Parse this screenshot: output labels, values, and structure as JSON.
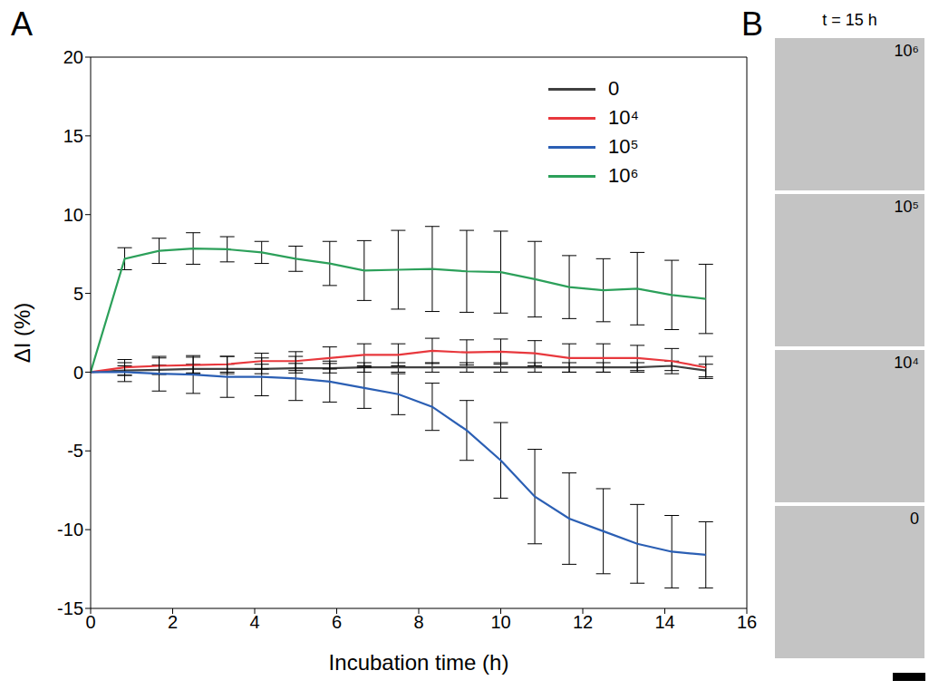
{
  "chart_data": {
    "type": "line",
    "x_label": "Incubation time (h)",
    "y_label": "ΔI (%)",
    "x": [
      0,
      0.83,
      1.67,
      2.5,
      3.33,
      4.17,
      5,
      5.83,
      6.67,
      7.5,
      8.33,
      9.17,
      10,
      10.83,
      11.67,
      12.5,
      13.33,
      14.17,
      15
    ],
    "series": [
      {
        "name": "0",
        "color": "#404040",
        "values": [
          0,
          0.1,
          0.15,
          0.2,
          0.2,
          0.2,
          0.25,
          0.25,
          0.3,
          0.3,
          0.3,
          0.3,
          0.3,
          0.3,
          0.3,
          0.3,
          0.3,
          0.4,
          0.1
        ],
        "errors": [
          0,
          0.3,
          0.3,
          0.3,
          0.3,
          0.3,
          0.3,
          0.3,
          0.3,
          0.3,
          0.3,
          0.3,
          0.3,
          0.3,
          0.3,
          0.3,
          0.3,
          0.3,
          0.4
        ]
      },
      {
        "name": "10⁴",
        "color": "#e8383d",
        "values": [
          0,
          0.3,
          0.4,
          0.45,
          0.5,
          0.7,
          0.7,
          0.9,
          1.1,
          1.1,
          1.35,
          1.25,
          1.3,
          1.2,
          0.9,
          0.9,
          0.9,
          0.7,
          0.3
        ],
        "errors": [
          0,
          0.5,
          0.5,
          0.5,
          0.5,
          0.5,
          0.6,
          0.7,
          0.7,
          0.7,
          0.8,
          0.8,
          0.8,
          0.8,
          0.9,
          0.9,
          0.8,
          0.8,
          0.7
        ]
      },
      {
        "name": "10⁵",
        "color": "#2b5fb4",
        "values": [
          0,
          0,
          -0.1,
          -0.15,
          -0.3,
          -0.3,
          -0.4,
          -0.6,
          -1.0,
          -1.4,
          -2.2,
          -3.7,
          -5.6,
          -7.9,
          -9.3,
          -10.1,
          -10.9,
          -11.4,
          -11.6
        ],
        "errors": [
          0,
          0.6,
          1.1,
          1.2,
          1.3,
          1.2,
          1.4,
          1.3,
          1.3,
          1.3,
          1.5,
          1.9,
          2.4,
          3.0,
          2.9,
          2.7,
          2.5,
          2.3,
          2.1
        ]
      },
      {
        "name": "10⁶",
        "color": "#2ca05a",
        "values": [
          0,
          7.2,
          7.7,
          7.85,
          7.8,
          7.6,
          7.2,
          6.9,
          6.45,
          6.5,
          6.55,
          6.4,
          6.35,
          5.9,
          5.4,
          5.2,
          5.3,
          4.9,
          4.65
        ],
        "errors": [
          0,
          0.7,
          0.8,
          1.0,
          0.8,
          0.7,
          0.8,
          1.4,
          1.9,
          2.5,
          2.7,
          2.6,
          2.6,
          2.4,
          2.0,
          2.0,
          2.3,
          2.2,
          2.2
        ]
      }
    ],
    "xlim": [
      0,
      16
    ],
    "xticks": [
      0,
      2,
      4,
      6,
      8,
      10,
      12,
      14,
      16
    ],
    "ylim": [
      -15,
      20
    ],
    "yticks": [
      -15,
      -10,
      -5,
      0,
      5,
      10,
      15,
      20
    ],
    "legend": "upper right",
    "grid": false
  },
  "panel_labels": [
    "A",
    "B"
  ],
  "panel_b": {
    "title": "t = 15 h",
    "images": [
      {
        "label": "10⁶"
      },
      {
        "label": "10⁵"
      },
      {
        "label": "10⁴"
      },
      {
        "label": "0"
      }
    ]
  }
}
